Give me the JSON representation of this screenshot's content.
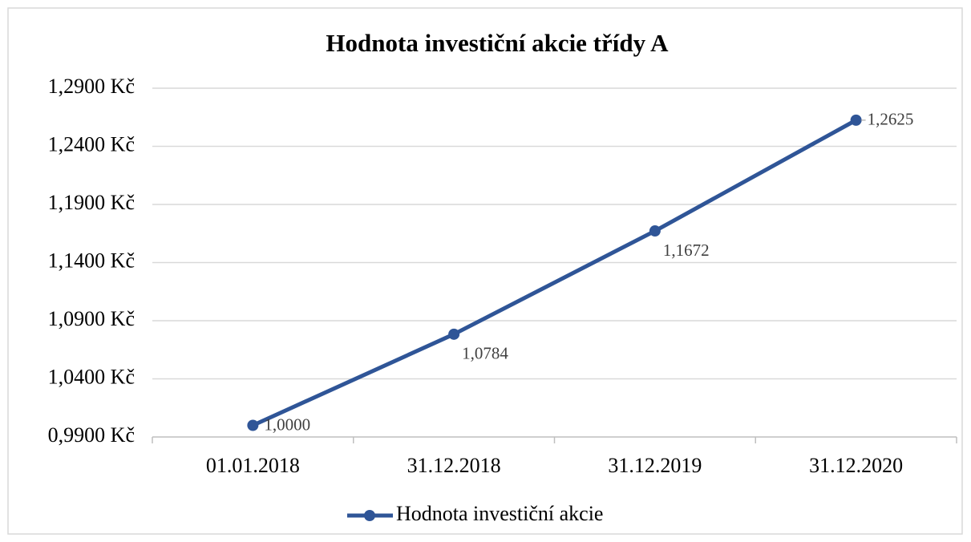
{
  "chart_data": {
    "type": "line",
    "title": "Hodnota investiční akcie třídy A",
    "categories": [
      "01.01.2018",
      "31.12.2018",
      "31.12.2019",
      "31.12.2020"
    ],
    "series": [
      {
        "name": "Hodnota investiční akcie",
        "color": "#2f5597",
        "values": [
          1.0,
          1.0784,
          1.1672,
          1.2625
        ],
        "value_labels": [
          "1,0000",
          "1,0784",
          "1,1672",
          "1,2625"
        ]
      }
    ],
    "ylim": [
      0.99,
      1.29
    ],
    "yticks": [
      {
        "value": 0.99,
        "label": "0,9900 Kč"
      },
      {
        "value": 1.04,
        "label": "1,0400 Kč"
      },
      {
        "value": 1.09,
        "label": "1,0900 Kč"
      },
      {
        "value": 1.14,
        "label": "1,1400 Kč"
      },
      {
        "value": 1.19,
        "label": "1,1900 Kč"
      },
      {
        "value": 1.24,
        "label": "1,2400 Kč"
      },
      {
        "value": 1.29,
        "label": "1,2900 Kč"
      }
    ],
    "grid": true,
    "legend": "bottom"
  }
}
